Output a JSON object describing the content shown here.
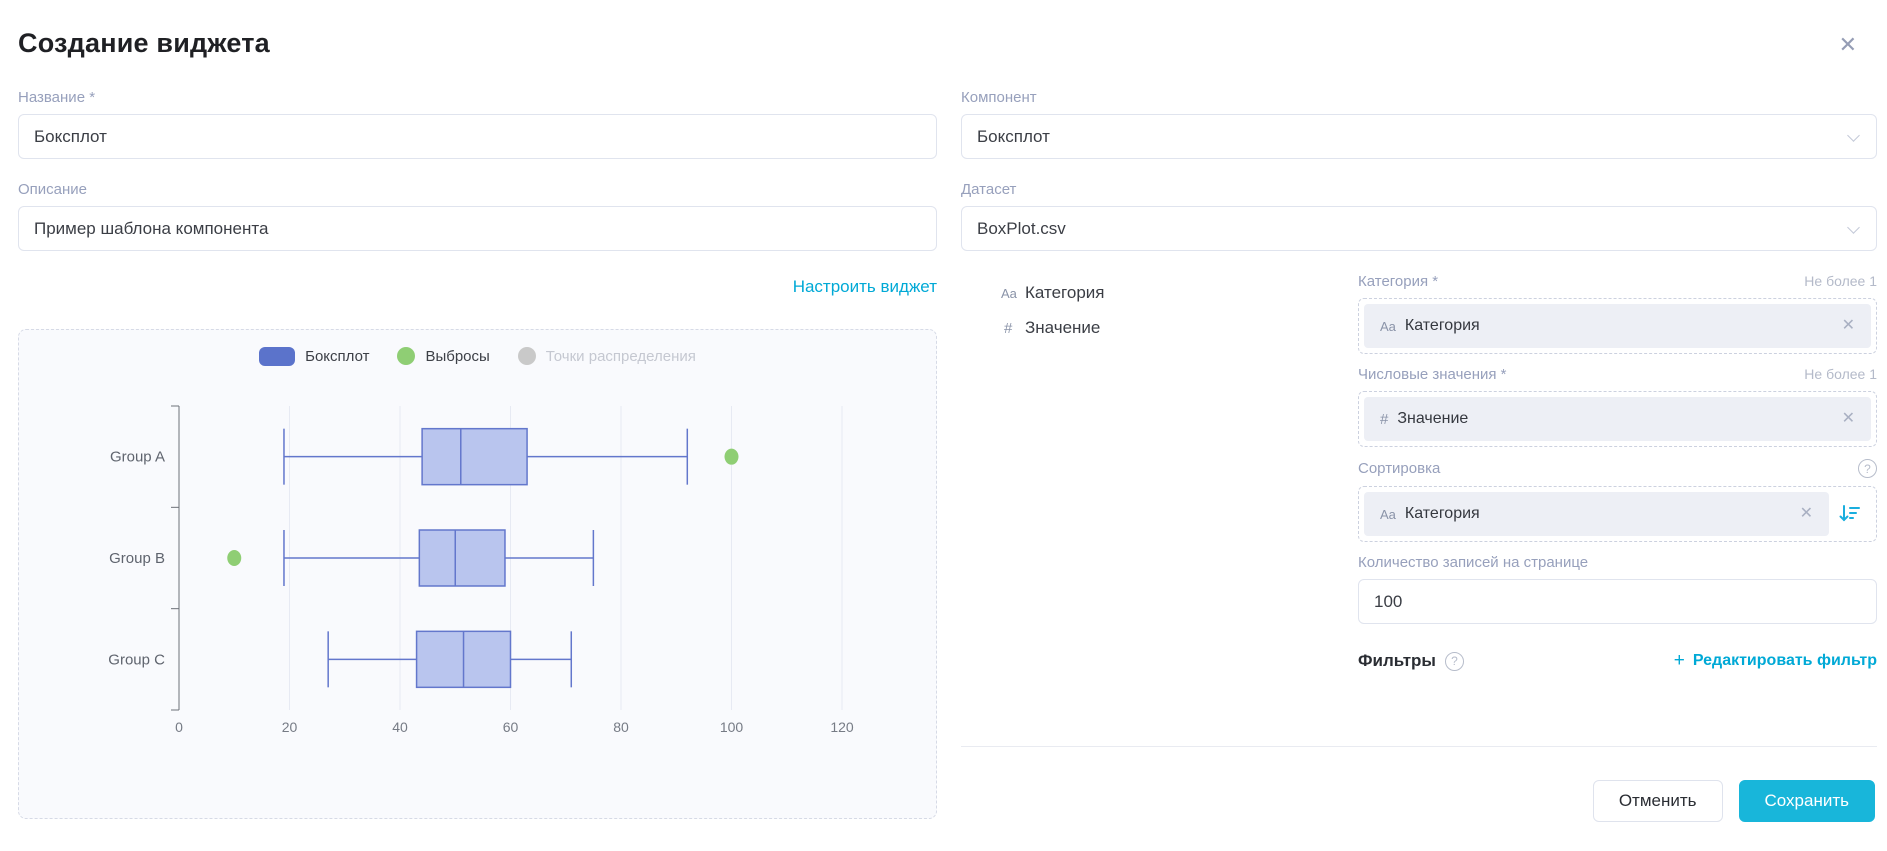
{
  "modal": {
    "title": "Создание виджета",
    "close_icon": "✕"
  },
  "form_left": {
    "name_label": "Название *",
    "name_value": "Боксплот",
    "description_label": "Описание",
    "description_value": "Пример шаблона компонента",
    "configure_link": "Настроить виджет"
  },
  "form_right": {
    "component_label": "Компонент",
    "component_value": "Боксплот",
    "dataset_label": "Датасет",
    "dataset_value": "BoxPlot.csv",
    "dataset_fields": [
      {
        "icon": "Aa",
        "name": "Категория"
      },
      {
        "icon": "#",
        "name": "Значение"
      }
    ],
    "category": {
      "label": "Категория *",
      "limit": "Не более 1",
      "chip_icon": "Aa",
      "chip": "Категория",
      "close_icon": "✕"
    },
    "values": {
      "label": "Числовые значения *",
      "limit": "Не более 1",
      "chip_icon": "#",
      "chip": "Значение",
      "close_icon": "✕"
    },
    "sorting": {
      "label": "Сортировка",
      "help_icon": "?",
      "chip_icon": "Aa",
      "chip": "Категория",
      "close_icon": "✕"
    },
    "page_size": {
      "label": "Количество записей на странице",
      "value": "100"
    },
    "filters": {
      "label": "Фильтры",
      "help_icon": "?",
      "plus_icon": "+",
      "edit_link": "Редактировать фильтр"
    }
  },
  "footer": {
    "cancel_label": "Отменить",
    "save_label": "Сохранить"
  },
  "colors": {
    "accent_link": "#00a9d6",
    "save_button": "#18b6da",
    "box_fill": "#b9c5ee",
    "box_stroke": "#6377cc",
    "outlier_green": "#8fce74",
    "legend_blue": "#5b73cb",
    "disabled_gray": "#c9c9c9",
    "grid": "#e7eaf3",
    "axis": "#6d7179",
    "tick_text": "#767b85",
    "category_text": "#5f646e"
  },
  "chart_data": {
    "type": "boxplot",
    "orientation": "horizontal",
    "categories": [
      "Group A",
      "Group B",
      "Group C"
    ],
    "xlim": [
      0,
      120
    ],
    "x_ticks": [
      0,
      20,
      40,
      60,
      80,
      100,
      120
    ],
    "grid": true,
    "legend_position": "top",
    "legend": [
      {
        "label": "Боксплот",
        "shape": "rect",
        "color": "#5b73cb",
        "disabled": false
      },
      {
        "label": "Выбросы",
        "shape": "circle",
        "color": "#8fce74",
        "disabled": false
      },
      {
        "label": "Точки распределения",
        "shape": "circle",
        "color": "#c9c9c9",
        "disabled": true
      }
    ],
    "series": [
      {
        "name": "Боксплот",
        "type": "boxplot",
        "values": [
          {
            "category": "Group A",
            "min": 19,
            "q1": 44,
            "median": 51,
            "q3": 63,
            "max": 92
          },
          {
            "category": "Group B",
            "min": 19,
            "q1": 43.5,
            "median": 50,
            "q3": 59,
            "max": 75
          },
          {
            "category": "Group C",
            "min": 27,
            "q1": 43,
            "median": 51.5,
            "q3": 60,
            "max": 71
          }
        ]
      },
      {
        "name": "Выбросы",
        "type": "scatter",
        "points": [
          {
            "category": "Group A",
            "value": 100
          },
          {
            "category": "Group B",
            "value": 10
          }
        ]
      },
      {
        "name": "Точки распределения",
        "type": "scatter",
        "points": [],
        "disabled": true
      }
    ]
  }
}
